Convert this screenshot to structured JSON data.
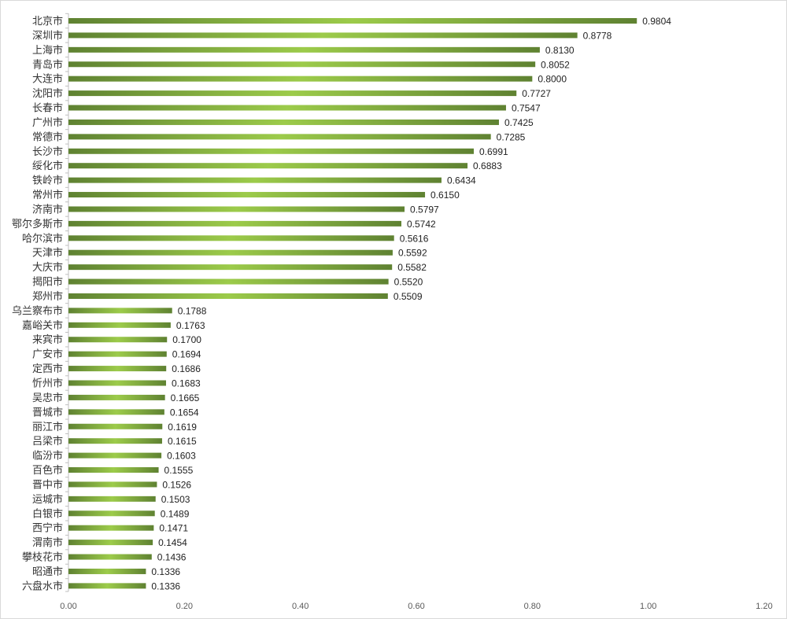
{
  "chart_data": {
    "type": "bar",
    "orientation": "horizontal",
    "title": "",
    "xlabel": "",
    "ylabel": "",
    "xlim": [
      0,
      1.2
    ],
    "x_ticks": [
      "0.00",
      "0.20",
      "0.40",
      "0.60",
      "0.80",
      "1.00",
      "1.20"
    ],
    "grid": false,
    "legend": "none",
    "bar_color_dark": "#5f8232",
    "bar_color_light": "#9ccb4a",
    "categories": [
      "北京市",
      "深圳市",
      "上海市",
      "青岛市",
      "大连市",
      "沈阳市",
      "长春市",
      "广州市",
      "常德市",
      "长沙市",
      "绥化市",
      "铁岭市",
      "常州市",
      "济南市",
      "鄂尔多斯市",
      "哈尔滨市",
      "天津市",
      "大庆市",
      "揭阳市",
      "郑州市",
      "乌兰察布市",
      "嘉峪关市",
      "来宾市",
      "广安市",
      "定西市",
      "忻州市",
      "吴忠市",
      "晋城市",
      "丽江市",
      "吕梁市",
      "临汾市",
      "百色市",
      "晋中市",
      "运城市",
      "白银市",
      "西宁市",
      "渭南市",
      "攀枝花市",
      "昭通市",
      "六盘水市"
    ],
    "values": [
      0.9804,
      0.8778,
      0.813,
      0.8052,
      0.8,
      0.7727,
      0.7547,
      0.7425,
      0.7285,
      0.6991,
      0.6883,
      0.6434,
      0.615,
      0.5797,
      0.5742,
      0.5616,
      0.5592,
      0.5582,
      0.552,
      0.5509,
      0.1788,
      0.1763,
      0.17,
      0.1694,
      0.1686,
      0.1683,
      0.1665,
      0.1654,
      0.1619,
      0.1615,
      0.1603,
      0.1555,
      0.1526,
      0.1503,
      0.1489,
      0.1471,
      0.1454,
      0.1436,
      0.1336,
      0.1336
    ],
    "value_labels": [
      "0.9804",
      "0.8778",
      "0.8130",
      "0.8052",
      "0.8000",
      "0.7727",
      "0.7547",
      "0.7425",
      "0.7285",
      "0.6991",
      "0.6883",
      "0.6434",
      "0.6150",
      "0.5797",
      "0.5742",
      "0.5616",
      "0.5592",
      "0.5582",
      "0.5520",
      "0.5509",
      "0.1788",
      "0.1763",
      "0.1700",
      "0.1694",
      "0.1686",
      "0.1683",
      "0.1665",
      "0.1654",
      "0.1619",
      "0.1615",
      "0.1603",
      "0.1555",
      "0.1526",
      "0.1503",
      "0.1489",
      "0.1471",
      "0.1454",
      "0.1436",
      "0.1336",
      "0.1336"
    ]
  }
}
